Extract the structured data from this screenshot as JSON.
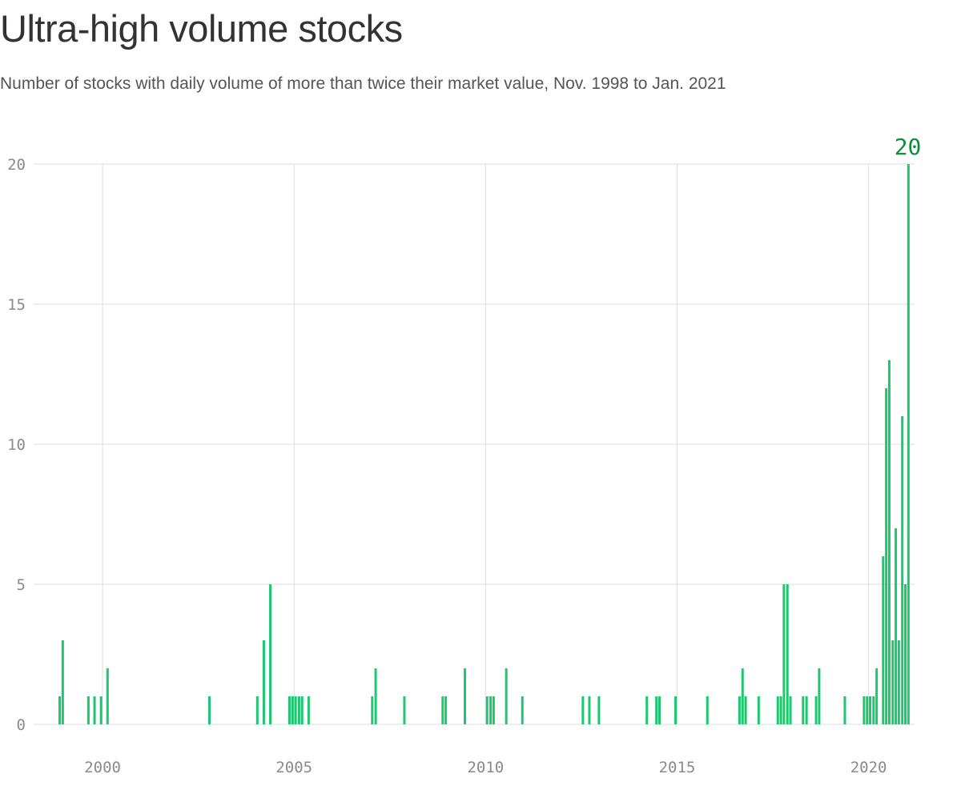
{
  "header": {
    "title": "Ultra-high volume stocks",
    "subtitle": "Number of stocks with daily volume of more than twice their market value, Nov. 1998 to Jan. 2021"
  },
  "colors": {
    "bar": "#1ec76f",
    "annotation": "#0b8f3c",
    "grid": "#dddddd",
    "axis_text": "#8a8a8a"
  },
  "chart_data": {
    "type": "bar",
    "title": "Ultra-high volume stocks",
    "subtitle": "Number of stocks with daily volume of more than twice their market value, Nov. 1998 to Jan. 2021",
    "xlabel": "",
    "ylabel": "",
    "xlim": [
      1998.2,
      2021.2
    ],
    "ylim": [
      0,
      20
    ],
    "x_ticks": [
      2000,
      2005,
      2010,
      2015,
      2020
    ],
    "x_tick_labels": [
      "2000",
      "2005",
      "2010",
      "2015",
      "2020"
    ],
    "y_ticks": [
      0,
      5,
      10,
      15,
      20
    ],
    "y_tick_labels": [
      "0",
      "5",
      "10",
      "15",
      "20"
    ],
    "grid": true,
    "annotation": {
      "text": "20",
      "x": 2021.0,
      "y": 20
    },
    "points": [
      {
        "x": 1998.88,
        "y": 1
      },
      {
        "x": 1998.96,
        "y": 3
      },
      {
        "x": 1999.63,
        "y": 1
      },
      {
        "x": 1999.79,
        "y": 1
      },
      {
        "x": 1999.96,
        "y": 1
      },
      {
        "x": 2000.13,
        "y": 2
      },
      {
        "x": 2002.79,
        "y": 1
      },
      {
        "x": 2004.04,
        "y": 1
      },
      {
        "x": 2004.21,
        "y": 3
      },
      {
        "x": 2004.38,
        "y": 5
      },
      {
        "x": 2004.88,
        "y": 1
      },
      {
        "x": 2004.96,
        "y": 1
      },
      {
        "x": 2005.04,
        "y": 1
      },
      {
        "x": 2005.13,
        "y": 1
      },
      {
        "x": 2005.21,
        "y": 1
      },
      {
        "x": 2005.38,
        "y": 1
      },
      {
        "x": 2007.04,
        "y": 1
      },
      {
        "x": 2007.13,
        "y": 2
      },
      {
        "x": 2007.88,
        "y": 1
      },
      {
        "x": 2008.88,
        "y": 1
      },
      {
        "x": 2008.96,
        "y": 1
      },
      {
        "x": 2009.46,
        "y": 2
      },
      {
        "x": 2010.04,
        "y": 1
      },
      {
        "x": 2010.13,
        "y": 1
      },
      {
        "x": 2010.21,
        "y": 1
      },
      {
        "x": 2010.54,
        "y": 2
      },
      {
        "x": 2010.96,
        "y": 1
      },
      {
        "x": 2012.54,
        "y": 1
      },
      {
        "x": 2012.71,
        "y": 1
      },
      {
        "x": 2012.96,
        "y": 1
      },
      {
        "x": 2014.21,
        "y": 1
      },
      {
        "x": 2014.46,
        "y": 1
      },
      {
        "x": 2014.54,
        "y": 1
      },
      {
        "x": 2014.96,
        "y": 1
      },
      {
        "x": 2015.79,
        "y": 1
      },
      {
        "x": 2016.63,
        "y": 1
      },
      {
        "x": 2016.71,
        "y": 2
      },
      {
        "x": 2016.79,
        "y": 1
      },
      {
        "x": 2017.13,
        "y": 1
      },
      {
        "x": 2017.63,
        "y": 1
      },
      {
        "x": 2017.71,
        "y": 1
      },
      {
        "x": 2017.79,
        "y": 5
      },
      {
        "x": 2017.88,
        "y": 5
      },
      {
        "x": 2017.96,
        "y": 1
      },
      {
        "x": 2018.29,
        "y": 1
      },
      {
        "x": 2018.38,
        "y": 1
      },
      {
        "x": 2018.63,
        "y": 1
      },
      {
        "x": 2018.71,
        "y": 2
      },
      {
        "x": 2019.38,
        "y": 1
      },
      {
        "x": 2019.88,
        "y": 1
      },
      {
        "x": 2019.96,
        "y": 1
      },
      {
        "x": 2020.04,
        "y": 1
      },
      {
        "x": 2020.13,
        "y": 1
      },
      {
        "x": 2020.21,
        "y": 2
      },
      {
        "x": 2020.29,
        "y": 0
      },
      {
        "x": 2020.38,
        "y": 6
      },
      {
        "x": 2020.46,
        "y": 12
      },
      {
        "x": 2020.54,
        "y": 13
      },
      {
        "x": 2020.63,
        "y": 3
      },
      {
        "x": 2020.71,
        "y": 7
      },
      {
        "x": 2020.79,
        "y": 3
      },
      {
        "x": 2020.88,
        "y": 11
      },
      {
        "x": 2020.96,
        "y": 5
      },
      {
        "x": 2021.04,
        "y": 20
      }
    ]
  }
}
